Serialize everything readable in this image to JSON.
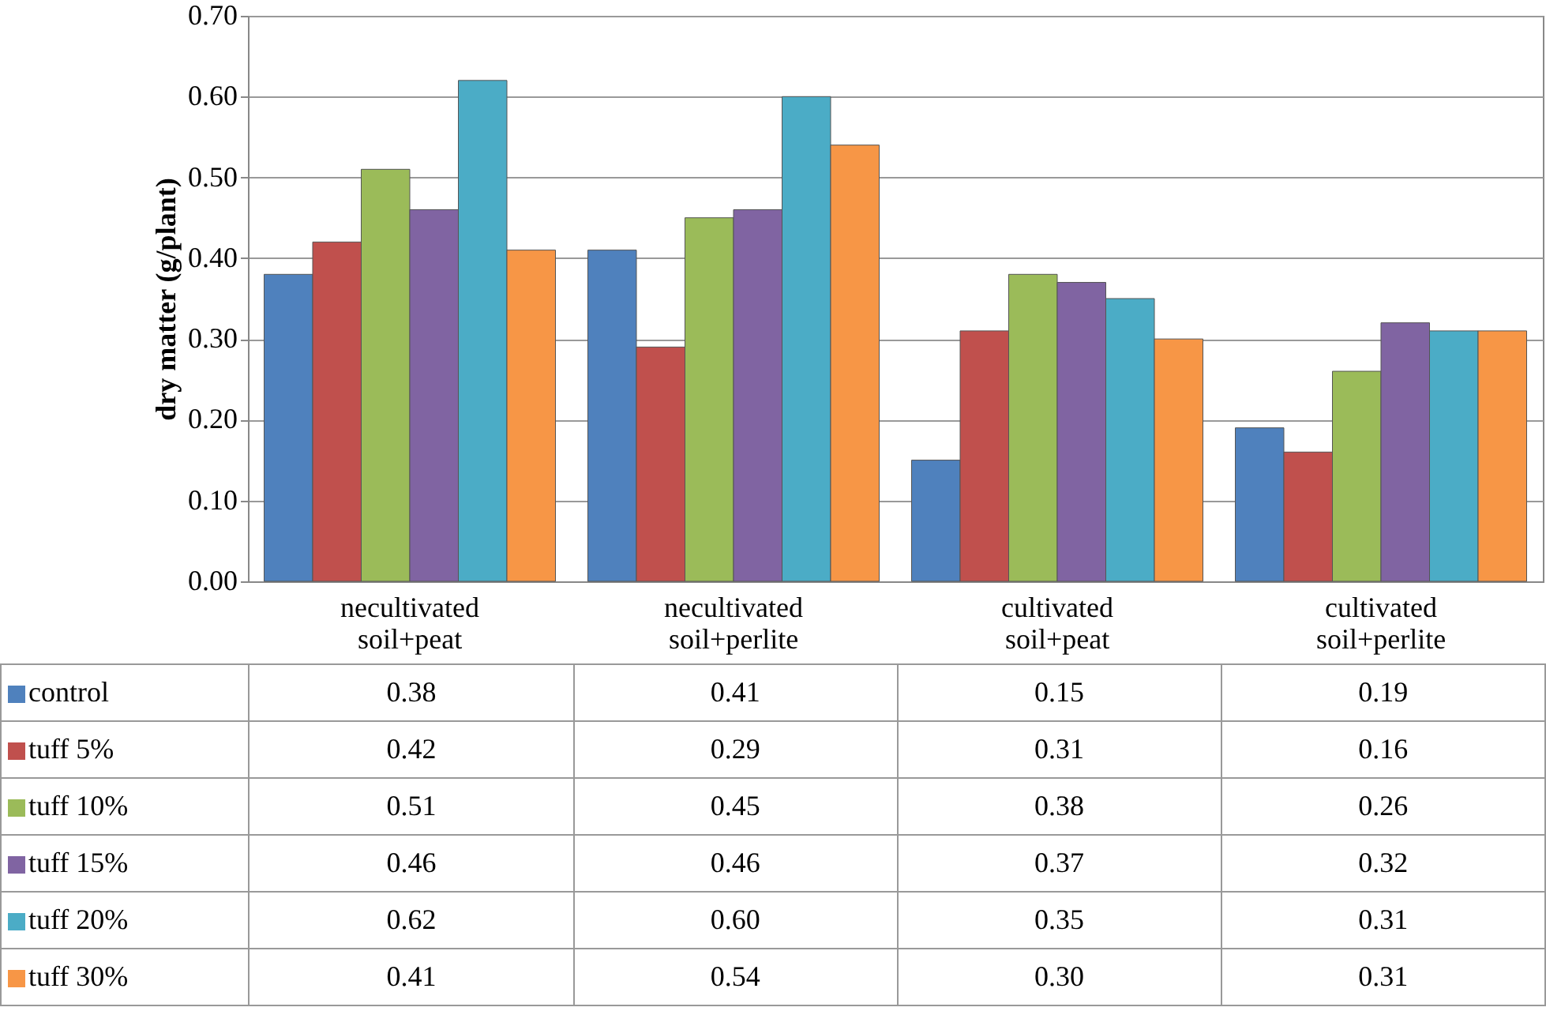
{
  "chart_data": {
    "type": "bar",
    "ylabel": "dry matter (g/plant)",
    "categories": [
      "necultivated soil+peat",
      "necultivated soil+perlite",
      "cultivated soil+peat",
      "cultivated soil+perlite"
    ],
    "series": [
      {
        "name": "control",
        "color": "#4f81bd",
        "values": [
          0.38,
          0.41,
          0.15,
          0.19
        ],
        "value_labels": [
          "0.38",
          "0.41",
          "0.15",
          "0.19"
        ]
      },
      {
        "name": "tuff 5%",
        "color": "#c0504d",
        "values": [
          0.42,
          0.29,
          0.31,
          0.16
        ],
        "value_labels": [
          "0.42",
          "0.29",
          "0.31",
          "0.16"
        ]
      },
      {
        "name": "tuff 10%",
        "color": "#9bbb59",
        "values": [
          0.51,
          0.45,
          0.38,
          0.26
        ],
        "value_labels": [
          "0.51",
          "0.45",
          "0.38",
          "0.26"
        ]
      },
      {
        "name": "tuff 15%",
        "color": "#8064a2",
        "values": [
          0.46,
          0.46,
          0.37,
          0.32
        ],
        "value_labels": [
          "0.46",
          "0.46",
          "0.37",
          "0.32"
        ]
      },
      {
        "name": "tuff 20%",
        "color": "#4bacc6",
        "values": [
          0.62,
          0.6,
          0.35,
          0.31
        ],
        "value_labels": [
          "0.62",
          "0.60",
          "0.35",
          "0.31"
        ]
      },
      {
        "name": "tuff 30%",
        "color": "#f79646",
        "values": [
          0.41,
          0.54,
          0.3,
          0.31
        ],
        "value_labels": [
          "0.41",
          "0.54",
          "0.30",
          "0.31"
        ]
      }
    ],
    "ylim": [
      0,
      0.7
    ],
    "yticks": [
      {
        "value": 0,
        "label": "0.00"
      },
      {
        "value": 0.1,
        "label": "0.10"
      },
      {
        "value": 0.2,
        "label": "0.20"
      },
      {
        "value": 0.3,
        "label": "0.30"
      },
      {
        "value": 0.4,
        "label": "0.40"
      },
      {
        "value": 0.5,
        "label": "0.50"
      },
      {
        "value": 0.6,
        "label": "0.60"
      },
      {
        "value": 0.7,
        "label": "0.70"
      }
    ],
    "grid": "y",
    "legend": "bottom"
  }
}
